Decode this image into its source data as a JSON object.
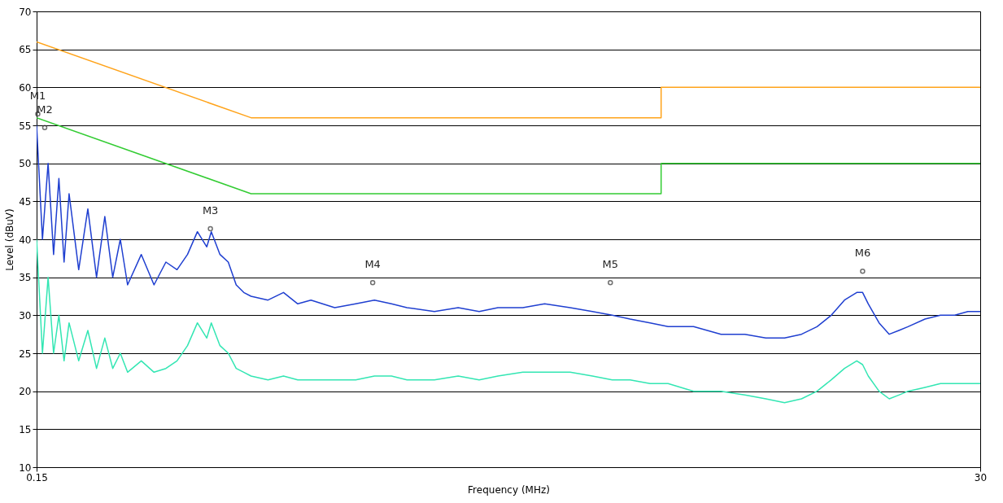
{
  "chart_data": {
    "type": "line",
    "xlabel": "Frequency (MHz)",
    "ylabel": "Level (dBuV)",
    "log": "x",
    "xlim": [
      0.15,
      30
    ],
    "xticks": [
      0.15,
      30
    ],
    "ylim": [
      10,
      70
    ],
    "yticks": [
      10,
      15,
      20,
      25,
      30,
      35,
      40,
      45,
      50,
      55,
      60,
      65,
      70
    ],
    "grid": "y",
    "marker": "none",
    "line_style": "solid",
    "series": [
      {
        "color": "#ffa31a",
        "x": [
          0.15,
          0.5,
          5,
          5,
          30
        ],
        "values": [
          66,
          56,
          56,
          60,
          60
        ]
      },
      {
        "color": "#33cc33",
        "x": [
          0.15,
          0.5,
          5,
          5,
          30
        ],
        "values": [
          56,
          46,
          46,
          50,
          50
        ]
      },
      {
        "color": "#1f3fd0",
        "x": [
          0.15,
          0.155,
          0.16,
          0.165,
          0.17,
          0.175,
          0.18,
          0.19,
          0.2,
          0.21,
          0.22,
          0.23,
          0.24,
          0.25,
          0.27,
          0.29,
          0.31,
          0.33,
          0.35,
          0.37,
          0.39,
          0.4,
          0.42,
          0.44,
          0.46,
          0.48,
          0.5,
          0.55,
          0.6,
          0.65,
          0.7,
          0.8,
          0.9,
          1.0,
          1.1,
          1.2,
          1.4,
          1.6,
          1.8,
          2,
          2.3,
          2.6,
          3,
          3.4,
          3.8,
          4.2,
          4.7,
          5.2,
          6,
          7,
          8,
          9,
          10,
          11,
          12,
          13,
          14,
          15,
          15.5,
          16,
          17,
          18,
          19,
          20,
          22,
          24,
          26,
          28,
          30
        ],
        "values": [
          55,
          40,
          50,
          38,
          48,
          37,
          46,
          36,
          44,
          35,
          43,
          35,
          40,
          34,
          38,
          34,
          37,
          36,
          38,
          41,
          39,
          41,
          38,
          37,
          34,
          33,
          32.5,
          32,
          33,
          31.5,
          32,
          31,
          31.5,
          32,
          31.5,
          31,
          30.5,
          31,
          30.5,
          31,
          31,
          31.5,
          31,
          30.5,
          30,
          29.5,
          29,
          28.5,
          28.5,
          27.5,
          27.5,
          27,
          27,
          27.5,
          28.5,
          30,
          32,
          33,
          33,
          31.5,
          29,
          27.5,
          28,
          28.5,
          29.5,
          30,
          30,
          30.5,
          30.5
        ]
      },
      {
        "color": "#33e6b3",
        "x": [
          0.15,
          0.155,
          0.16,
          0.165,
          0.17,
          0.175,
          0.18,
          0.19,
          0.2,
          0.21,
          0.22,
          0.23,
          0.24,
          0.25,
          0.27,
          0.29,
          0.31,
          0.33,
          0.35,
          0.37,
          0.39,
          0.4,
          0.42,
          0.44,
          0.46,
          0.48,
          0.5,
          0.55,
          0.6,
          0.65,
          0.7,
          0.8,
          0.9,
          1.0,
          1.1,
          1.2,
          1.4,
          1.6,
          1.8,
          2,
          2.3,
          2.6,
          3,
          3.4,
          3.8,
          4.2,
          4.7,
          5.2,
          6,
          7,
          8,
          9,
          10,
          11,
          12,
          13,
          14,
          15,
          15.5,
          16,
          17,
          18,
          19,
          20,
          22,
          24,
          26,
          28,
          30
        ],
        "values": [
          40,
          25,
          35,
          25,
          30,
          24,
          29,
          24,
          28,
          23,
          27,
          23,
          25,
          22.5,
          24,
          22.5,
          23,
          24,
          26,
          29,
          27,
          29,
          26,
          25,
          23,
          22.5,
          22,
          21.5,
          22,
          21.5,
          21.5,
          21.5,
          21.5,
          22,
          22,
          21.5,
          21.5,
          22,
          21.5,
          22,
          22.5,
          22.5,
          22.5,
          22,
          21.5,
          21.5,
          21,
          21,
          20,
          20,
          19.5,
          19,
          18.5,
          19,
          20,
          21.5,
          23,
          24,
          23.5,
          22,
          20,
          19,
          19.5,
          20,
          20.5,
          21,
          21,
          21,
          21
        ]
      },
      {
        "type": "scatter",
        "marker": "circle",
        "color": "#333333",
        "x": [
          0.151,
          0.157,
          0.398,
          0.99,
          3.76,
          15.5
        ],
        "values": [
          56.5,
          54.7,
          41.4,
          34.3,
          34.3,
          35.8
        ]
      }
    ],
    "annotations": [
      {
        "text": "M1",
        "x": 0.151,
        "y": 56.5
      },
      {
        "text": "M2",
        "x": 0.157,
        "y": 54.7
      },
      {
        "text": "M3",
        "x": 0.398,
        "y": 41.4
      },
      {
        "text": "M4",
        "x": 0.99,
        "y": 34.3
      },
      {
        "text": "M5",
        "x": 3.76,
        "y": 34.3
      },
      {
        "text": "M6",
        "x": 15.5,
        "y": 35.8
      }
    ]
  }
}
